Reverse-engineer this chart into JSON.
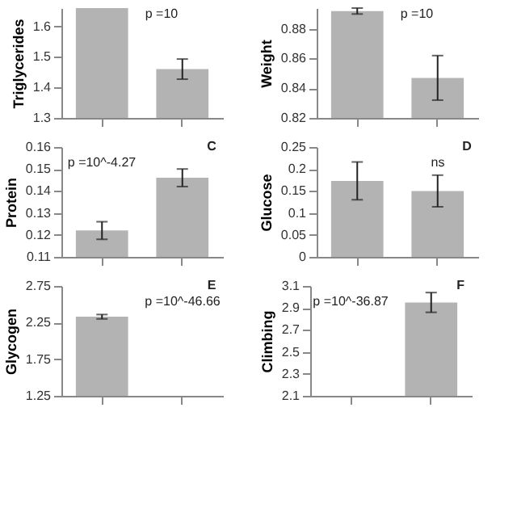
{
  "chart_data": [
    {
      "type": "bar",
      "ylabel": "Triglycerides",
      "categories": [
        null,
        null
      ],
      "values": [
        1.66,
        1.46
      ],
      "errors": [
        null,
        0.033
      ],
      "color": "#b3b3b3",
      "ylim": [
        1.3,
        1.66
      ],
      "yticks": [
        1.3,
        1.4,
        1.5,
        1.6
      ],
      "tick_labels": "y",
      "grid": false,
      "annotations": [
        "p =10"
      ]
    },
    {
      "type": "bar",
      "ylabel": "Weight",
      "categories": [
        null,
        null
      ],
      "values": [
        0.892,
        0.847
      ],
      "errors": [
        0.002,
        0.015
      ],
      "color": "#b3b3b3",
      "ylim": [
        0.82,
        0.894
      ],
      "yticks": [
        0.82,
        0.84,
        0.86,
        0.88
      ],
      "tick_labels": "y",
      "grid": false,
      "annotations": [
        "p =10"
      ]
    },
    {
      "type": "bar",
      "ylabel": "Protein",
      "categories": [
        null,
        null
      ],
      "values": [
        0.122,
        0.146
      ],
      "errors": [
        0.004,
        0.004
      ],
      "color": "#b3b3b3",
      "ylim": [
        0.11,
        0.16
      ],
      "yticks": [
        0.11,
        0.12,
        0.13,
        0.14,
        0.15,
        0.16
      ],
      "tick_labels": "y",
      "grid": false,
      "annotations": [
        "C",
        "p =10^-4.27"
      ]
    },
    {
      "type": "bar",
      "ylabel": "Glucose",
      "categories": [
        null,
        null
      ],
      "values": [
        0.173,
        0.15
      ],
      "errors": [
        0.043,
        0.036
      ],
      "color": "#b3b3b3",
      "ylim": [
        0,
        0.25
      ],
      "yticks": [
        0,
        0.05,
        0.1,
        0.15,
        0.2,
        0.25
      ],
      "tick_labels": "y",
      "grid": false,
      "annotations": [
        "D",
        "ns"
      ]
    },
    {
      "type": "bar",
      "ylabel": "Glycogen",
      "categories": [
        null,
        null
      ],
      "values": [
        2.33,
        null
      ],
      "errors": [
        0.03,
        null
      ],
      "color": "#b3b3b3",
      "ylim": [
        1.25,
        2.75
      ],
      "yticks": [
        1.25,
        1.75,
        2.25,
        2.75
      ],
      "tick_labels": "y",
      "grid": false,
      "annotations": [
        "E",
        "p =10^-46.66"
      ]
    },
    {
      "type": "bar",
      "ylabel": "Climbing",
      "categories": [
        null,
        null
      ],
      "values": [
        null,
        2.95
      ],
      "errors": [
        null,
        0.09
      ],
      "color": "#b3b3b3",
      "ylim": [
        2.1,
        3.1
      ],
      "yticks": [
        2.1,
        2.3,
        2.5,
        2.7,
        2.9,
        3.1
      ],
      "tick_labels": "y",
      "grid": false,
      "annotations": [
        "F",
        "p =10^-36.87"
      ]
    }
  ]
}
